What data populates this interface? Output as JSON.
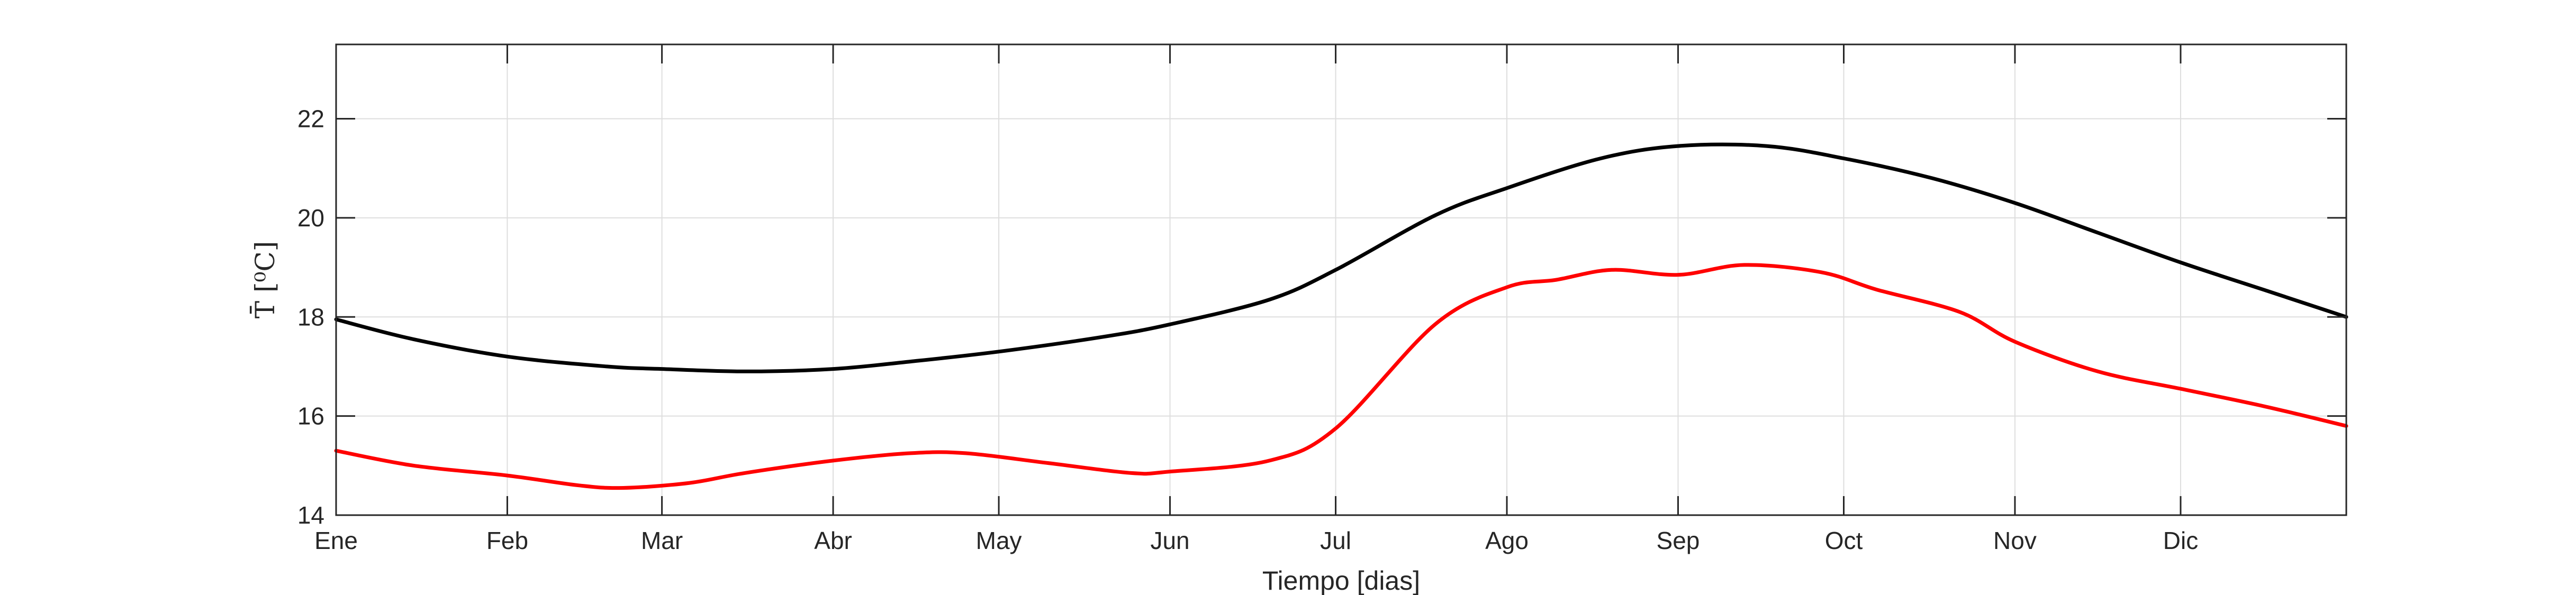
{
  "chart_data": {
    "type": "line",
    "title": "",
    "xlabel": "Tiempo [dias]",
    "ylabel": "T̄  [⁰C]",
    "xlim": [
      1,
      365
    ],
    "ylim": [
      14,
      23.5
    ],
    "x_ticks": [
      {
        "x": 1,
        "label": "Ene"
      },
      {
        "x": 32,
        "label": "Feb"
      },
      {
        "x": 60,
        "label": "Mar"
      },
      {
        "x": 91,
        "label": "Abr"
      },
      {
        "x": 121,
        "label": "May"
      },
      {
        "x": 152,
        "label": "Jun"
      },
      {
        "x": 182,
        "label": "Jul"
      },
      {
        "x": 213,
        "label": "Ago"
      },
      {
        "x": 244,
        "label": "Sep"
      },
      {
        "x": 274,
        "label": "Oct"
      },
      {
        "x": 305,
        "label": "Nov"
      },
      {
        "x": 335,
        "label": "Dic"
      }
    ],
    "y_ticks": [
      14,
      16,
      18,
      20,
      22
    ],
    "grid": true,
    "legend": "none",
    "series": [
      {
        "color": "#000000",
        "x": [
          1,
          15,
          32,
          50,
          60,
          75,
          91,
          105,
          121,
          140,
          152,
          170,
          182,
          200,
          213,
          230,
          244,
          260,
          274,
          290,
          305,
          320,
          335,
          350,
          365
        ],
        "y": [
          17.95,
          17.55,
          17.2,
          17.0,
          16.95,
          16.9,
          16.95,
          17.1,
          17.3,
          17.6,
          17.85,
          18.35,
          18.95,
          20.05,
          20.6,
          21.2,
          21.45,
          21.45,
          21.2,
          20.8,
          20.3,
          19.7,
          19.1,
          18.55,
          18.0
        ]
      },
      {
        "color": "#ff0000",
        "x": [
          1,
          15,
          32,
          45,
          53,
          65,
          75,
          91,
          105,
          115,
          130,
          145,
          152,
          170,
          182,
          200,
          213,
          222,
          232,
          244,
          256,
          270,
          280,
          295,
          305,
          320,
          335,
          350,
          365
        ],
        "y": [
          15.3,
          15.0,
          14.8,
          14.6,
          14.55,
          14.65,
          14.85,
          15.1,
          15.25,
          15.25,
          15.05,
          14.85,
          14.88,
          15.1,
          15.75,
          17.85,
          18.6,
          18.75,
          18.95,
          18.85,
          19.05,
          18.9,
          18.55,
          18.1,
          17.5,
          16.9,
          16.55,
          16.2,
          15.8
        ]
      }
    ]
  }
}
